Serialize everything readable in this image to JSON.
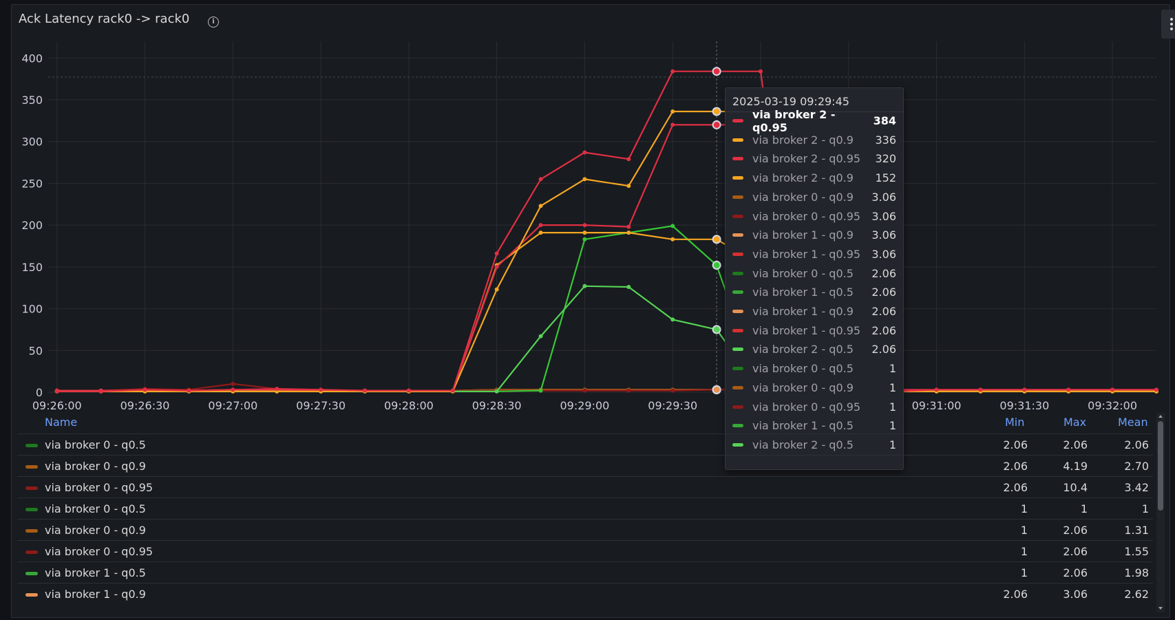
{
  "panel": {
    "title": "Ack Latency rack0 -> rack0",
    "info_icon": "info-circle-icon",
    "menu_icon": "kebab-menu-icon"
  },
  "chart_data": {
    "type": "line",
    "title": "Ack Latency rack0 -> rack0",
    "ylim": [
      0,
      420
    ],
    "yticks": [
      0,
      50,
      100,
      150,
      200,
      250,
      300,
      350,
      400
    ],
    "xlim": [
      "09:25:57",
      "09:32:15"
    ],
    "xticks": [
      "09:26:00",
      "09:26:30",
      "09:27:00",
      "09:27:30",
      "09:28:00",
      "09:28:30",
      "09:29:00",
      "09:29:30",
      "09:30:00",
      "09:30:30",
      "09:31:00",
      "09:31:30",
      "09:32:00"
    ],
    "grid": true,
    "legend": "bottom-table",
    "x": [
      "09:26:00",
      "09:26:15",
      "09:26:30",
      "09:26:45",
      "09:27:00",
      "09:27:15",
      "09:27:30",
      "09:27:45",
      "09:28:00",
      "09:28:15",
      "09:28:30",
      "09:28:45",
      "09:29:00",
      "09:29:15",
      "09:29:30",
      "09:29:45",
      "09:30:00",
      "09:30:15",
      "09:30:30",
      "09:30:45",
      "09:31:00",
      "09:31:15",
      "09:31:30",
      "09:31:45",
      "09:32:00",
      "09:32:15"
    ],
    "series": [
      {
        "name": "via broker 2 - q0.95",
        "color": "#e02f44",
        "values": [
          1,
          1,
          3,
          2,
          3,
          4,
          3,
          2,
          2,
          2,
          166,
          255,
          287,
          279,
          384,
          384,
          384,
          1,
          1,
          1,
          3,
          3,
          3,
          3,
          3,
          3
        ]
      },
      {
        "name": "via broker 2 - q0.9",
        "color": "#f5a623",
        "values": [
          1,
          1,
          1,
          1,
          1,
          1,
          1,
          1,
          1,
          1,
          123,
          223,
          255,
          247,
          336,
          336,
          336,
          1,
          1,
          1,
          1,
          1,
          1,
          1,
          1,
          1
        ]
      },
      {
        "name": "via broker 2 - q0.95",
        "color": "#e02f44",
        "values": [
          2,
          2,
          2,
          2,
          3,
          3,
          2,
          2,
          2,
          2,
          150,
          200,
          200,
          198,
          320,
          320,
          320,
          3,
          3,
          3,
          3,
          3,
          3,
          3,
          3,
          3
        ]
      },
      {
        "name": "via broker 2 - q0.9",
        "color": "#f5a623",
        "values": [
          1,
          1,
          1,
          1,
          1,
          1,
          1,
          1,
          1,
          1,
          152,
          191,
          191,
          191,
          183,
          183,
          152,
          1,
          1,
          1,
          1,
          1,
          1,
          1,
          1,
          1
        ]
      },
      {
        "name": "via broker 2 - q0.5",
        "color": "#56d356",
        "values": [
          1,
          1,
          1,
          1,
          1,
          1,
          1,
          1,
          1,
          1,
          1,
          67,
          127,
          126,
          87,
          75,
          1,
          1,
          1,
          1,
          1,
          1,
          1,
          1,
          1,
          1
        ]
      },
      {
        "name": "via broker 2 - q0.5",
        "color": "#37c837",
        "values": [
          1,
          1,
          1,
          1,
          1,
          1,
          1,
          1,
          1,
          1,
          1,
          2,
          183,
          191,
          199,
          152,
          2,
          1,
          1,
          1,
          1,
          1,
          1,
          1,
          1,
          1
        ]
      },
      {
        "name": "via broker 0 - q0.95",
        "color": "#8e1a1a",
        "values": [
          2,
          2,
          4,
          3,
          10,
          4,
          3,
          2,
          2,
          2,
          2,
          2,
          2,
          2,
          2,
          3,
          3,
          2,
          2,
          2,
          2,
          2,
          2,
          2,
          2,
          2
        ]
      },
      {
        "name": "via broker 0 - q0.9",
        "color": "#a85c14",
        "values": [
          2,
          2,
          2,
          2,
          3,
          2,
          2,
          2,
          2,
          2,
          3,
          3,
          3,
          3,
          3,
          3,
          3,
          2,
          2,
          2,
          2,
          2,
          2,
          2,
          2,
          2
        ]
      },
      {
        "name": "via broker 1 - q0.9",
        "color": "#e69356",
        "values": [
          2,
          2,
          2,
          2,
          2,
          2,
          2,
          2,
          2,
          2,
          3,
          3,
          3,
          3,
          3,
          3,
          3,
          2,
          2,
          2,
          2,
          2,
          2,
          2,
          2,
          2
        ]
      }
    ],
    "hover_x": "09:29:45"
  },
  "tooltip": {
    "time": "2025-03-19 09:29:45",
    "rows": [
      {
        "name": "via broker 2 - q0.95",
        "value": "384",
        "color": "#e02f44"
      },
      {
        "name": "via broker 2 - q0.9",
        "value": "336",
        "color": "#f5a623"
      },
      {
        "name": "via broker 2 - q0.95",
        "value": "320",
        "color": "#e02f44"
      },
      {
        "name": "via broker 2 - q0.9",
        "value": "152",
        "color": "#f5a623"
      },
      {
        "name": "via broker 0 - q0.9",
        "value": "3.06",
        "color": "#a85c14"
      },
      {
        "name": "via broker 0 - q0.95",
        "value": "3.06",
        "color": "#8e1a1a"
      },
      {
        "name": "via broker 1 - q0.9",
        "value": "3.06",
        "color": "#e69356"
      },
      {
        "name": "via broker 1 - q0.95",
        "value": "3.06",
        "color": "#d63030"
      },
      {
        "name": "via broker 0 - q0.5",
        "value": "2.06",
        "color": "#1f7a1f"
      },
      {
        "name": "via broker 1 - q0.5",
        "value": "2.06",
        "color": "#37a837"
      },
      {
        "name": "via broker 1 - q0.9",
        "value": "2.06",
        "color": "#e69356"
      },
      {
        "name": "via broker 1 - q0.95",
        "value": "2.06",
        "color": "#d63030"
      },
      {
        "name": "via broker 2 - q0.5",
        "value": "2.06",
        "color": "#56d356"
      },
      {
        "name": "via broker 0 - q0.5",
        "value": "1",
        "color": "#1f7a1f"
      },
      {
        "name": "via broker 0 - q0.9",
        "value": "1",
        "color": "#a85c14"
      },
      {
        "name": "via broker 0 - q0.95",
        "value": "1",
        "color": "#8e1a1a"
      },
      {
        "name": "via broker 1 - q0.5",
        "value": "1",
        "color": "#37a837"
      },
      {
        "name": "via broker 2 - q0.5",
        "value": "1",
        "color": "#56d356"
      }
    ]
  },
  "legend_table": {
    "headers": {
      "name": "Name",
      "min": "Min",
      "max": "Max",
      "mean": "Mean"
    },
    "rows": [
      {
        "name": "via broker 0 - q0.5",
        "color": "#1f7a1f",
        "min": "2.06",
        "max": "2.06",
        "mean": "2.06"
      },
      {
        "name": "via broker 0 - q0.9",
        "color": "#a85c14",
        "min": "2.06",
        "max": "4.19",
        "mean": "2.70"
      },
      {
        "name": "via broker 0 - q0.95",
        "color": "#8e1a1a",
        "min": "2.06",
        "max": "10.4",
        "mean": "3.42"
      },
      {
        "name": "via broker 0 - q0.5",
        "color": "#1f7a1f",
        "min": "1",
        "max": "1",
        "mean": "1"
      },
      {
        "name": "via broker 0 - q0.9",
        "color": "#a85c14",
        "min": "1",
        "max": "2.06",
        "mean": "1.31"
      },
      {
        "name": "via broker 0 - q0.95",
        "color": "#8e1a1a",
        "min": "1",
        "max": "2.06",
        "mean": "1.55"
      },
      {
        "name": "via broker 1 - q0.5",
        "color": "#37a837",
        "min": "1",
        "max": "2.06",
        "mean": "1.98"
      },
      {
        "name": "via broker 1 - q0.9",
        "color": "#e69356",
        "min": "2.06",
        "max": "3.06",
        "mean": "2.62"
      }
    ]
  }
}
